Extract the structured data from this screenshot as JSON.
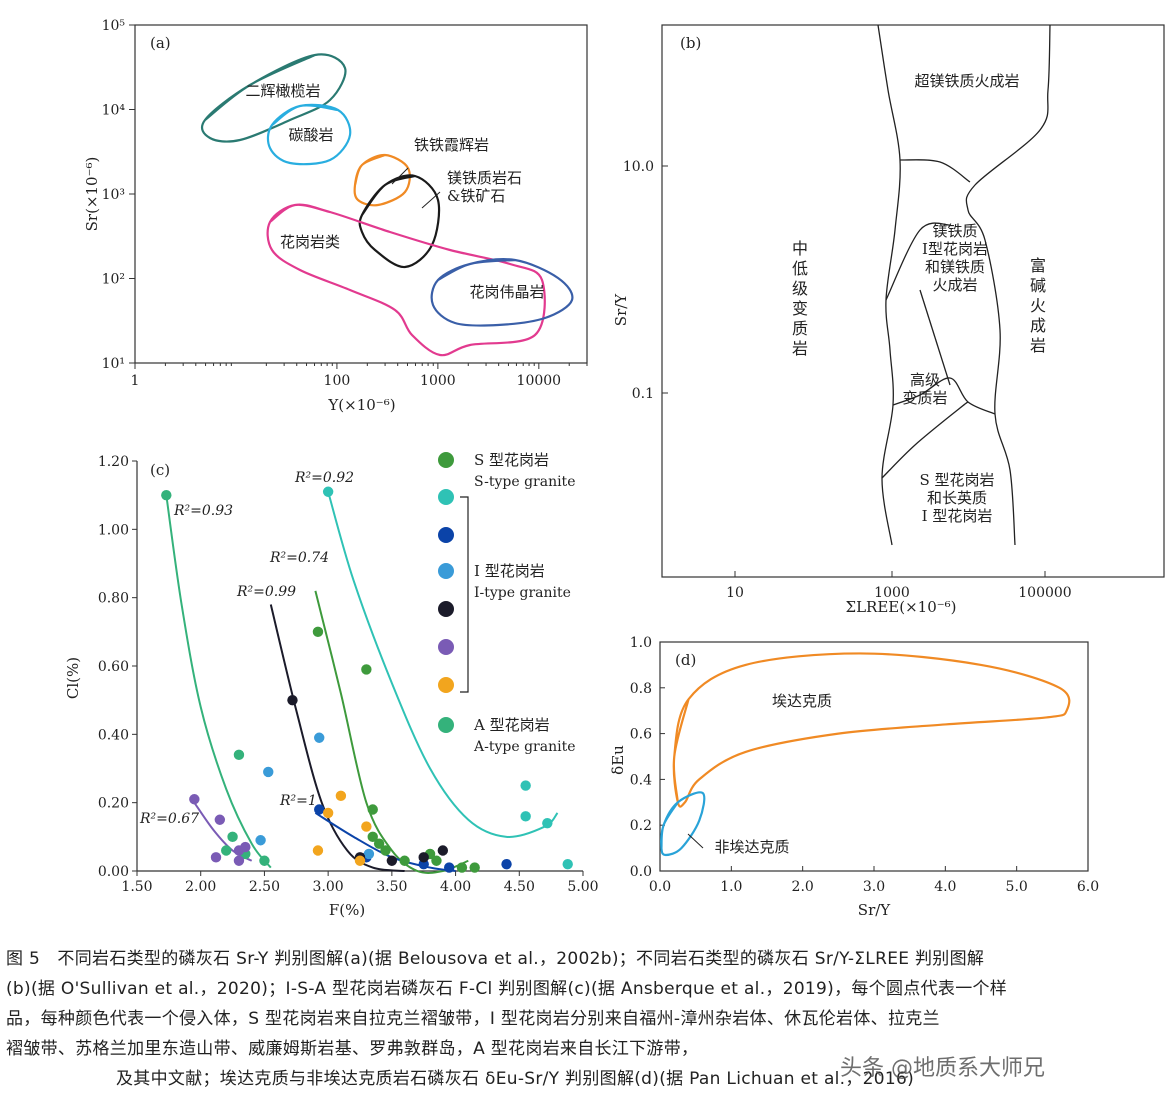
{
  "chart_data": [
    {
      "panel": "(a)",
      "type": "scatter",
      "xscale": "log",
      "yscale": "log",
      "xlim": [
        1,
        30000
      ],
      "ylim": [
        10,
        100000
      ],
      "xlabel": "Y(×10⁻⁶)",
      "ylabel": "Sr(×10⁻⁶)",
      "x_ticks": [
        "1",
        "100",
        "1000",
        "10000"
      ],
      "y_ticks": [
        "10¹",
        "10²",
        "10³",
        "10⁴",
        "10⁵"
      ],
      "fields": [
        {
          "label": "二辉橄榄岩",
          "color": "#2a7a72"
        },
        {
          "label": "碳酸岩",
          "color": "#29aee0"
        },
        {
          "label": "铁铁霞辉岩",
          "color": "#f08a24"
        },
        {
          "label": "镁铁质岩石\n&铁矿石",
          "color": "#1a1a1a"
        },
        {
          "label": "花岗岩类",
          "color": "#e23a8f"
        },
        {
          "label": "花岗伟晶岩",
          "color": "#3a5fa8"
        }
      ]
    },
    {
      "panel": "(b)",
      "type": "scatter",
      "xscale": "log",
      "yscale": "log",
      "xlabel": "ΣLREE(×10⁻⁶)",
      "ylabel": "Sr/Y",
      "x_ticks": [
        "10",
        "1000",
        "100000"
      ],
      "y_ticks": [
        "10.0",
        "0.1"
      ],
      "fields": [
        {
          "label": "超镁铁质火成岩"
        },
        {
          "label": "中低级变质岩"
        },
        {
          "label": "镁铁质\nI型花岗岩\n和镁铁质\n火成岩"
        },
        {
          "label": "富碱火成岩"
        },
        {
          "label": "高级\n变质岩"
        },
        {
          "label": "S 型花岗岩\n和长英质\nI 型花岗岩"
        }
      ]
    },
    {
      "panel": "(c)",
      "type": "scatter",
      "xlim": [
        1.5,
        5.0
      ],
      "ylim": [
        0.0,
        1.2
      ],
      "xlabel": "F(%)",
      "ylabel": "Cl(%)",
      "x_ticks": [
        "1.50",
        "2.00",
        "2.50",
        "3.00",
        "3.50",
        "4.00",
        "4.50",
        "5.00"
      ],
      "y_ticks": [
        "0.00",
        "0.20",
        "0.40",
        "0.60",
        "0.80",
        "1.00",
        "1.20"
      ],
      "legend": [
        {
          "text": "S 型花岗岩",
          "sub": "S-type granite",
          "color": "#3e9a3c"
        },
        {
          "color": "#2fc2b5"
        },
        {
          "color": "#0b43a8"
        },
        {
          "text": "I 型花岗岩",
          "sub": "I-type granite",
          "color": "#3a9bd8"
        },
        {
          "color": "#1b1b2a"
        },
        {
          "color": "#7a5bb5"
        },
        {
          "color": "#f2a51e"
        },
        {
          "text": "A 型花岗岩",
          "sub": "A-type granite",
          "color": "#34b27b"
        }
      ],
      "fits": [
        {
          "label": "R²=0.93",
          "color": "#34b27b",
          "x": [
            1.73,
            1.85,
            2.0,
            2.2,
            2.4,
            2.55
          ],
          "y": [
            1.1,
            0.78,
            0.48,
            0.24,
            0.08,
            0.01
          ]
        },
        {
          "label": "R²=0.92",
          "color": "#2fc2b5",
          "x": [
            3.0,
            3.2,
            3.5,
            3.8,
            4.1,
            4.4,
            4.7,
            4.8
          ],
          "y": [
            1.11,
            0.85,
            0.55,
            0.3,
            0.15,
            0.1,
            0.13,
            0.17
          ]
        },
        {
          "label": "R²=0.74",
          "color": "#3e9a3c",
          "x": [
            2.9,
            3.1,
            3.3,
            3.5,
            3.7,
            3.9,
            4.1
          ],
          "y": [
            0.82,
            0.52,
            0.2,
            0.06,
            0.0,
            0.0,
            0.03
          ]
        },
        {
          "label": "R²=0.99",
          "color": "#1b1b2a",
          "x": [
            2.55,
            2.75,
            2.95,
            3.15,
            3.35,
            3.6
          ],
          "y": [
            0.78,
            0.47,
            0.2,
            0.06,
            0.01,
            0.0
          ]
        },
        {
          "label": "R²=1",
          "color": "#0b43a8",
          "x": [
            2.9,
            3.2,
            3.5,
            3.8,
            4.0
          ],
          "y": [
            0.17,
            0.1,
            0.04,
            0.01,
            0.0
          ]
        },
        {
          "label": "R²=0.67",
          "color": "#7a5bb5",
          "x": [
            1.95,
            2.1,
            2.25,
            2.4
          ],
          "y": [
            0.2,
            0.12,
            0.06,
            0.03
          ]
        }
      ],
      "points": [
        {
          "x": 1.73,
          "y": 1.1,
          "color": "#34b27b"
        },
        {
          "x": 2.3,
          "y": 0.34,
          "color": "#34b27b"
        },
        {
          "x": 2.25,
          "y": 0.1,
          "color": "#34b27b"
        },
        {
          "x": 2.35,
          "y": 0.05,
          "color": "#34b27b"
        },
        {
          "x": 2.5,
          "y": 0.03,
          "color": "#34b27b"
        },
        {
          "x": 2.2,
          "y": 0.06,
          "color": "#34b27b"
        },
        {
          "x": 3.0,
          "y": 1.11,
          "color": "#2fc2b5"
        },
        {
          "x": 4.55,
          "y": 0.25,
          "color": "#2fc2b5"
        },
        {
          "x": 4.55,
          "y": 0.16,
          "color": "#2fc2b5"
        },
        {
          "x": 4.72,
          "y": 0.14,
          "color": "#2fc2b5"
        },
        {
          "x": 4.88,
          "y": 0.02,
          "color": "#2fc2b5"
        },
        {
          "x": 2.92,
          "y": 0.7,
          "color": "#3e9a3c"
        },
        {
          "x": 3.3,
          "y": 0.59,
          "color": "#3e9a3c"
        },
        {
          "x": 3.35,
          "y": 0.18,
          "color": "#3e9a3c"
        },
        {
          "x": 3.35,
          "y": 0.1,
          "color": "#3e9a3c"
        },
        {
          "x": 3.4,
          "y": 0.08,
          "color": "#3e9a3c"
        },
        {
          "x": 3.45,
          "y": 0.06,
          "color": "#3e9a3c"
        },
        {
          "x": 3.6,
          "y": 0.03,
          "color": "#3e9a3c"
        },
        {
          "x": 3.8,
          "y": 0.05,
          "color": "#3e9a3c"
        },
        {
          "x": 3.85,
          "y": 0.03,
          "color": "#3e9a3c"
        },
        {
          "x": 4.05,
          "y": 0.01,
          "color": "#3e9a3c"
        },
        {
          "x": 4.15,
          "y": 0.01,
          "color": "#3e9a3c"
        },
        {
          "x": 2.93,
          "y": 0.18,
          "color": "#0b43a8"
        },
        {
          "x": 3.3,
          "y": 0.04,
          "color": "#0b43a8"
        },
        {
          "x": 3.75,
          "y": 0.02,
          "color": "#0b43a8"
        },
        {
          "x": 3.95,
          "y": 0.01,
          "color": "#0b43a8"
        },
        {
          "x": 4.4,
          "y": 0.02,
          "color": "#0b43a8"
        },
        {
          "x": 2.93,
          "y": 0.39,
          "color": "#3a9bd8"
        },
        {
          "x": 2.53,
          "y": 0.29,
          "color": "#3a9bd8"
        },
        {
          "x": 2.47,
          "y": 0.09,
          "color": "#3a9bd8"
        },
        {
          "x": 3.32,
          "y": 0.05,
          "color": "#3a9bd8"
        },
        {
          "x": 2.72,
          "y": 0.5,
          "color": "#1b1b2a"
        },
        {
          "x": 3.25,
          "y": 0.04,
          "color": "#1b1b2a"
        },
        {
          "x": 3.5,
          "y": 0.03,
          "color": "#1b1b2a"
        },
        {
          "x": 3.75,
          "y": 0.04,
          "color": "#1b1b2a"
        },
        {
          "x": 3.9,
          "y": 0.06,
          "color": "#1b1b2a"
        },
        {
          "x": 1.95,
          "y": 0.21,
          "color": "#7a5bb5"
        },
        {
          "x": 2.15,
          "y": 0.15,
          "color": "#7a5bb5"
        },
        {
          "x": 2.12,
          "y": 0.04,
          "color": "#7a5bb5"
        },
        {
          "x": 2.3,
          "y": 0.06,
          "color": "#7a5bb5"
        },
        {
          "x": 2.3,
          "y": 0.03,
          "color": "#7a5bb5"
        },
        {
          "x": 2.35,
          "y": 0.07,
          "color": "#7a5bb5"
        },
        {
          "x": 3.1,
          "y": 0.22,
          "color": "#f2a51e"
        },
        {
          "x": 3.0,
          "y": 0.17,
          "color": "#f2a51e"
        },
        {
          "x": 2.92,
          "y": 0.06,
          "color": "#f2a51e"
        },
        {
          "x": 3.3,
          "y": 0.13,
          "color": "#f2a51e"
        },
        {
          "x": 3.25,
          "y": 0.03,
          "color": "#f2a51e"
        }
      ]
    },
    {
      "panel": "(d)",
      "type": "scatter",
      "xlim": [
        0.0,
        6.0
      ],
      "ylim": [
        0.0,
        1.0
      ],
      "xlabel": "Sr/Y",
      "ylabel": "δEu",
      "x_ticks": [
        "0.0",
        "1.0",
        "2.0",
        "3.0",
        "4.0",
        "5.0",
        "6.0"
      ],
      "y_ticks": [
        "0.0",
        "0.2",
        "0.4",
        "0.6",
        "0.8",
        "1.0"
      ],
      "fields": [
        {
          "label": "埃达克质",
          "color": "#f08a24"
        },
        {
          "label": "非埃达克质",
          "color": "#29a3d8"
        }
      ]
    }
  ],
  "caption": {
    "lines": [
      "图 5　不同岩石类型的磷灰石 Sr-Y 判别图解(a)(据 Belousova et al.，2002b)；不同岩石类型的磷灰石 Sr/Y-ΣLREE 判别图解",
      "(b)(据 O'Sullivan et al.，2020)；I-S-A 型花岗岩磷灰石 F-Cl 判别图解(c)(据 Ansberque et al.，2019)，每个圆点代表一个样",
      "品，每种颜色代表一个侵入体，S 型花岗岩来自拉克兰褶皱带，I 型花岗岩分别来自福州-漳州杂岩体、休瓦伦岩体、拉克兰",
      "褶皱带、苏格兰加里东造山带、威廉姆斯岩基、罗弗敦群岛，A 型花岗岩来自长江下游带，",
      "及其中文献；埃达克质与非埃达克质岩石磷灰石 δEu-Sr/Y 判别图解(d)(据 Pan Lichuan et al.，2016)"
    ]
  },
  "watermark": "头条 @地质系大师兄"
}
